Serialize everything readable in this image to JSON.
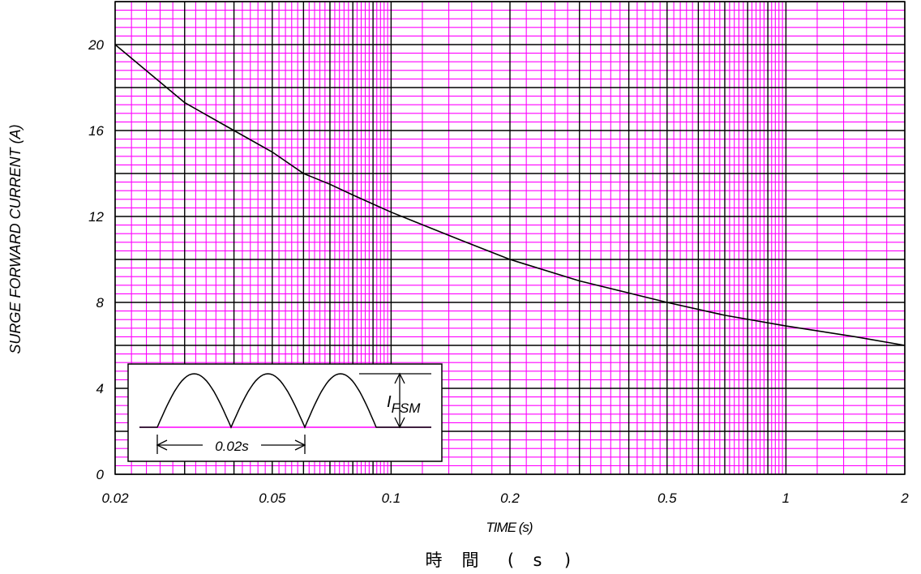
{
  "chart_data": {
    "type": "line",
    "title": "",
    "xlabel": "TIME (s)",
    "xlabel_cjk": "時 間 (s)",
    "ylabel": "SURGE FORWARD CURRENT (A)",
    "xscale": "log",
    "xlim": [
      0.02,
      2
    ],
    "ylim": [
      0,
      22
    ],
    "x_ticks": [
      "0.02",
      "0.05",
      "0.1",
      "0.2",
      "0.5",
      "1",
      "2"
    ],
    "y_ticks": [
      "0",
      "4",
      "8",
      "12",
      "16",
      "20"
    ],
    "grid": true,
    "series": [
      {
        "x": [
          0.02,
          0.03,
          0.04,
          0.05,
          0.06,
          0.07,
          0.08,
          0.1,
          0.15,
          0.2,
          0.3,
          0.5,
          0.7,
          1,
          1.5,
          2
        ],
        "y": [
          20,
          17.3,
          16,
          15,
          14,
          13.5,
          13,
          12.2,
          10.9,
          10,
          9,
          8,
          7.4,
          6.9,
          6.4,
          6
        ]
      }
    ],
    "colors": {
      "grid_minor": "#ff00ff",
      "grid_major": "#000000",
      "curve": "#000000",
      "background": "#ffffff"
    },
    "inset": {
      "waveform_label_main": "I",
      "waveform_label_sub": "FSM",
      "period_label": "0.02s"
    }
  }
}
